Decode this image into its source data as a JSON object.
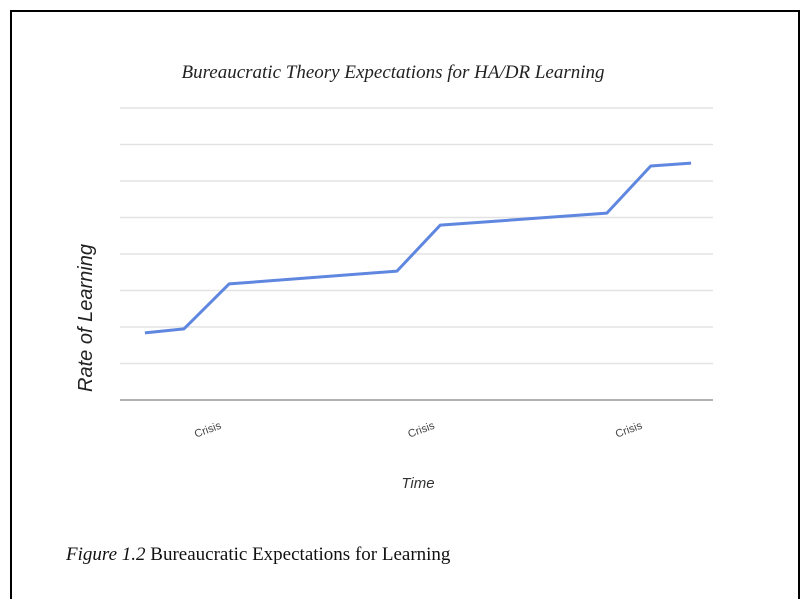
{
  "chart_data": {
    "type": "line",
    "title": "Bureaucratic Theory Expectations for HA/DR Learning",
    "xlabel": "Time",
    "ylabel": "Rate of Learning",
    "x": [
      4.2,
      10.8,
      18.4,
      46.7,
      54,
      82.1,
      89.5,
      96.3
    ],
    "series": [
      {
        "color": "#5f87e0",
        "values": [
          1.84,
          1.95,
          3.18,
          3.53,
          4.79,
          5.12,
          6.41,
          6.49
        ]
      }
    ],
    "xlim": [
      0,
      100
    ],
    "xticks": [
      {
        "value": 15,
        "label": "Crisis"
      },
      {
        "value": 51,
        "label": "Crisis"
      },
      {
        "value": 86,
        "label": "Crisis"
      }
    ],
    "ylim": [
      0,
      8
    ],
    "yticks": [
      0,
      1,
      2,
      3,
      4,
      5,
      6,
      7,
      8
    ],
    "grid": true
  },
  "caption": {
    "label": "Figure 1.2",
    "text": "Bureaucratic Expectations for Learning"
  }
}
